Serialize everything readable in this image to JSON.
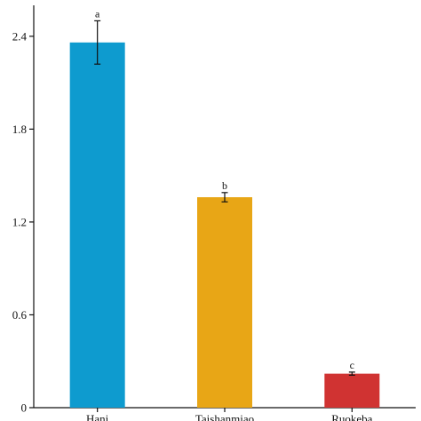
{
  "chart_data": {
    "type": "bar",
    "title": "",
    "xlabel": "",
    "ylabel": "",
    "categories": [
      "Hani",
      "Taishanmiao",
      "Ruokeba"
    ],
    "values": [
      2.36,
      1.36,
      0.22
    ],
    "errors": [
      0.14,
      0.03,
      0.01
    ],
    "significance": [
      "a",
      "b",
      "c"
    ],
    "colors": [
      "#0e9bcf",
      "#e8a616",
      "#d03332"
    ],
    "ylim": [
      0,
      2.6
    ],
    "yticks": [
      0,
      0.6,
      1.2,
      1.8,
      2.4
    ],
    "ytick_labels": [
      "0",
      "0.6",
      "1.2",
      "1.8",
      "2.4"
    ],
    "grid": false,
    "legend": "none"
  }
}
